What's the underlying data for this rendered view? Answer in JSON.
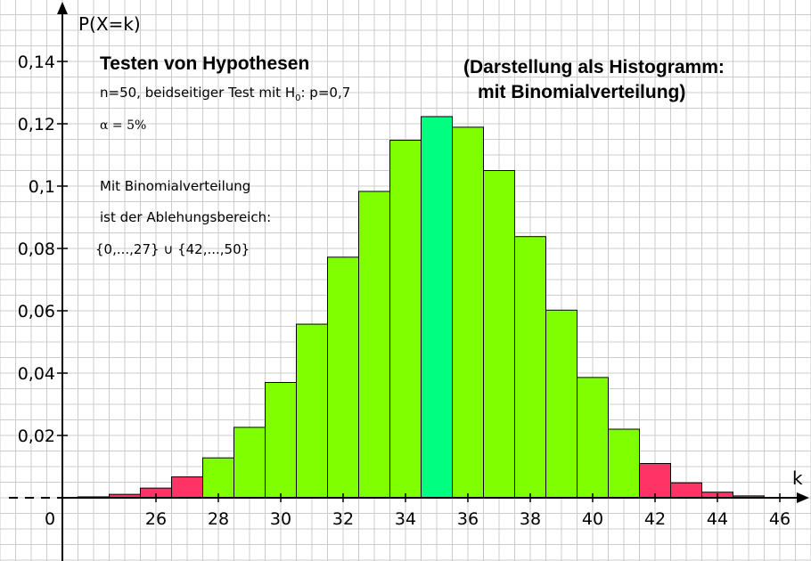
{
  "chart_data": {
    "type": "bar",
    "x_axis_label": "k",
    "y_axis_label": "P(X=k)",
    "origin_label": "0",
    "x_ticks": [
      26,
      28,
      30,
      32,
      34,
      36,
      38,
      40,
      42,
      44,
      46
    ],
    "y_ticks": [
      0.02,
      0.04,
      0.06,
      0.08,
      0.1,
      0.12,
      0.14
    ],
    "y_tick_labels": [
      "0,02",
      "0,04",
      "0,06",
      "0,08",
      "0,1",
      "0,12",
      "0,14"
    ],
    "xlim": [
      23,
      48
    ],
    "ylim": [
      -0.02,
      0.155
    ],
    "grid": true,
    "k": [
      24,
      25,
      26,
      27,
      28,
      29,
      30,
      31,
      32,
      33,
      34,
      35,
      36,
      37,
      38,
      39,
      40,
      41,
      42,
      43,
      44,
      45,
      46
    ],
    "values": [
      0.0003,
      0.0011,
      0.0031,
      0.0067,
      0.0128,
      0.0226,
      0.037,
      0.0557,
      0.0772,
      0.0983,
      0.1147,
      0.1223,
      0.1189,
      0.105,
      0.0838,
      0.0602,
      0.0386,
      0.022,
      0.011,
      0.0048,
      0.0018,
      0.0006,
      0.0001
    ],
    "rejection_region": [
      "0..27",
      "42..50"
    ],
    "colors": {
      "rejection": "#ff3366",
      "acceptance": "#80ff00",
      "expected": "#00ff80",
      "grid": "#cccccc",
      "axis": "#000000"
    },
    "expected_k": 35
  },
  "annotations": {
    "title": "Testen von Hypothesen",
    "test_prefix": "n=50, beidseitiger Test mit H",
    "test_sub": "0",
    "test_suffix": ": p=0,7",
    "alpha": "α = 5%",
    "method_line1": "Mit Binomialverteilung",
    "method_line2": "ist der Ablehungsbereich:",
    "region": "{0,...,27} ∪ {42,...,50}",
    "subtitle_line1": "(Darstellung als Histogramm:",
    "subtitle_line2": "mit Binomialverteilung)"
  }
}
